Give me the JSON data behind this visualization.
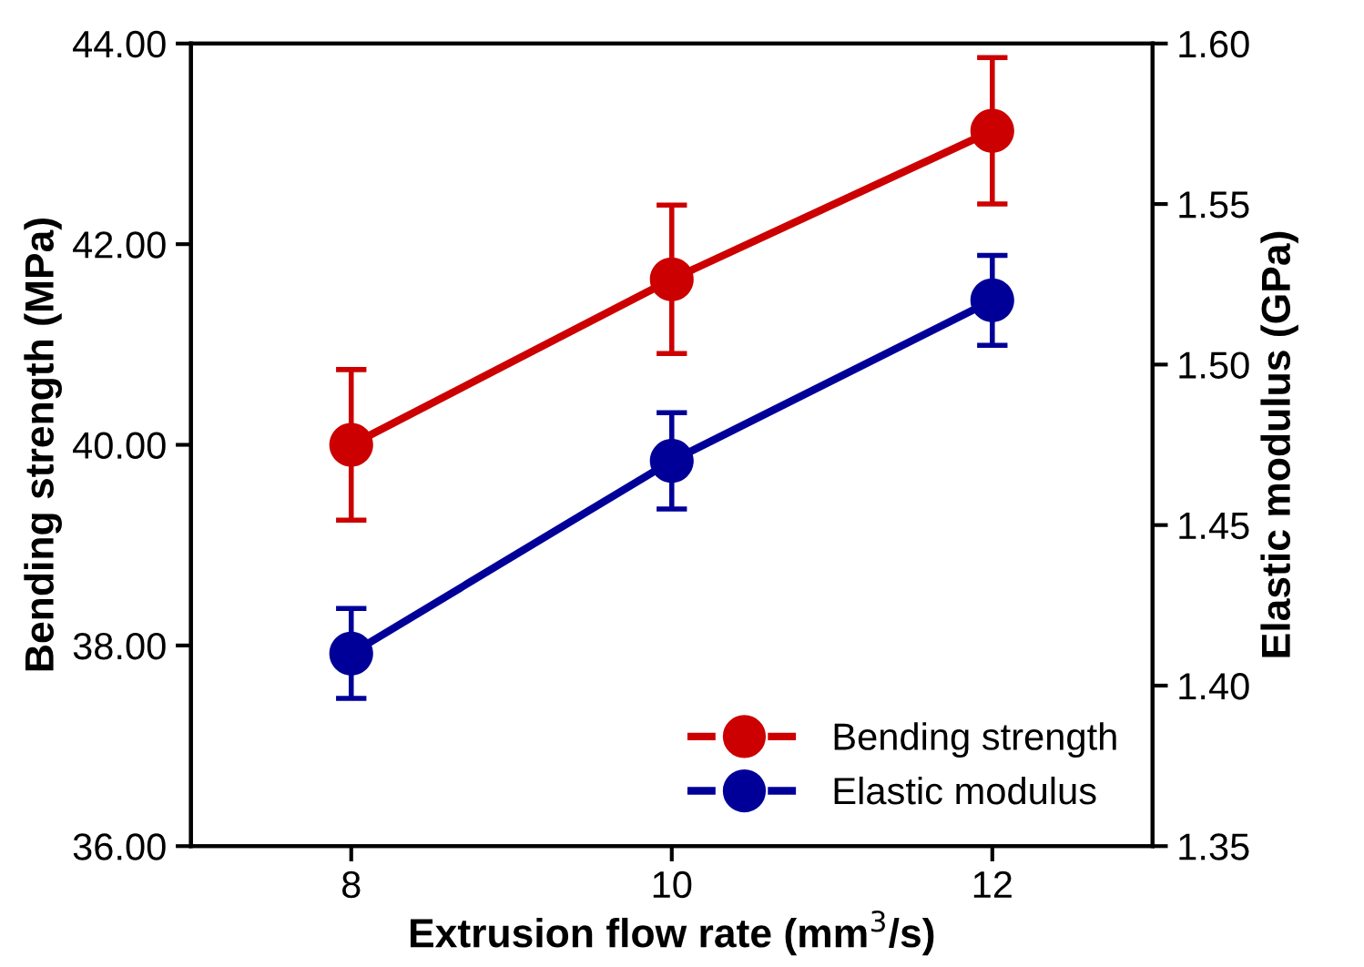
{
  "chart_data": {
    "type": "line",
    "xlabel": "Extrusion flow rate (mm$^{3}$/s)",
    "ylabel": "Bending strength (MPa)",
    "y2label": "Elastic modulus (GPa)",
    "x": [
      8,
      10,
      12
    ],
    "xlim": [
      7,
      13
    ],
    "xticks": [
      8,
      10,
      12
    ],
    "ylim": [
      36,
      44
    ],
    "yticks": [
      {
        "value": 36,
        "label": "36.00"
      },
      {
        "value": 38,
        "label": "38.00"
      },
      {
        "value": 40,
        "label": "40.00"
      },
      {
        "value": 42,
        "label": "42.00"
      },
      {
        "value": 44,
        "label": "44.00"
      }
    ],
    "y2lim": [
      1.35,
      1.6
    ],
    "y2ticks": [
      {
        "value": 1.35,
        "label": "1.35"
      },
      {
        "value": 1.4,
        "label": "1.40"
      },
      {
        "value": 1.45,
        "label": "1.45"
      },
      {
        "value": 1.5,
        "label": "1.50"
      },
      {
        "value": 1.55,
        "label": "1.55"
      },
      {
        "value": 1.6,
        "label": "1.60"
      }
    ],
    "series": [
      {
        "name": "Bending strength",
        "color": "#cc0000",
        "values": [
          40.0,
          41.65,
          43.13
        ],
        "errors": [
          0.75,
          0.74,
          0.73
        ]
      },
      {
        "name": "Elastic modulus",
        "color": "#000099",
        "axis": "y2",
        "values": [
          1.41,
          1.47,
          1.52
        ],
        "errors": [
          0.014,
          0.015,
          0.014
        ]
      }
    ],
    "marker": "circle",
    "grid": false,
    "legend": "bottom right"
  }
}
